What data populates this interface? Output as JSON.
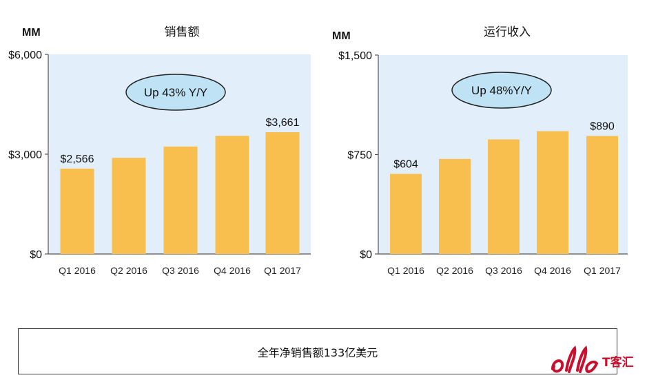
{
  "chart_data": [
    {
      "type": "bar",
      "title": "销售额",
      "unit_label": "MM",
      "categories": [
        "Q1 2016",
        "Q2 2016",
        "Q3 2016",
        "Q4 2016",
        "Q1 2017"
      ],
      "values": [
        2566,
        2890,
        3230,
        3550,
        3661
      ],
      "data_labels": [
        "$2,566",
        "",
        "",
        "",
        "$3,661"
      ],
      "ylim": [
        0,
        6000
      ],
      "yticks": [
        0,
        3000,
        6000
      ],
      "ytick_labels": [
        "$0",
        "$3,000",
        "$6,000"
      ],
      "annotation": "Up 43% Y/Y",
      "bar_color": "#F8BF4F",
      "plot_bg": "#E2EFFA",
      "annotation_fill": "#BFE3F5"
    },
    {
      "type": "bar",
      "title": "运行收入",
      "unit_label": "MM",
      "categories": [
        "Q1 2016",
        "Q2 2016",
        "Q3 2016",
        "Q4 2016",
        "Q1 2017"
      ],
      "values": [
        604,
        717,
        864,
        926,
        890
      ],
      "data_labels": [
        "$604",
        "",
        "",
        "",
        "$890"
      ],
      "ylim": [
        0,
        1500
      ],
      "yticks": [
        0,
        750,
        1500
      ],
      "ytick_labels": [
        "$0",
        "$750",
        "$1,500"
      ],
      "annotation": "Up 48%Y/Y",
      "bar_color": "#F8BF4F",
      "plot_bg": "#E2EFFA",
      "annotation_fill": "#BFE3F5"
    }
  ],
  "caption": "全年净销售额133亿美元",
  "logo": {
    "wordmark": "T客汇",
    "color": "#C8102E"
  }
}
